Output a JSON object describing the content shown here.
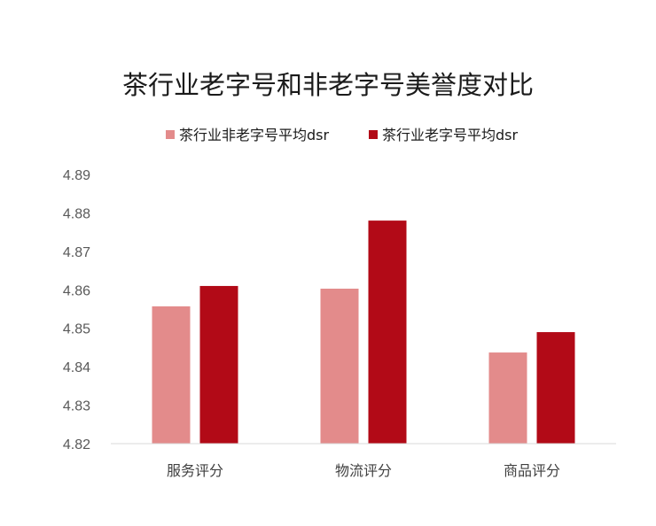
{
  "chart_data": {
    "type": "bar",
    "title": "茶行业老字号和非老字号美誉度对比",
    "categories": [
      "服务评分",
      "物流评分",
      "商品评分"
    ],
    "series": [
      {
        "name": "茶行业非老字号平均dsr",
        "color": "#E38B8B",
        "values": [
          4.8557,
          4.8603,
          4.8437
        ]
      },
      {
        "name": "茶行业老字号平均dsr",
        "color": "#B20A17",
        "values": [
          4.861,
          4.878,
          4.849
        ]
      }
    ],
    "ylim": [
      4.82,
      4.89
    ],
    "yticks": [
      "4.89",
      "4.88",
      "4.87",
      "4.86",
      "4.85",
      "4.84",
      "4.83",
      "4.82"
    ],
    "xlabel": "",
    "ylabel": "",
    "grid": false,
    "legend_position": "top-center"
  }
}
